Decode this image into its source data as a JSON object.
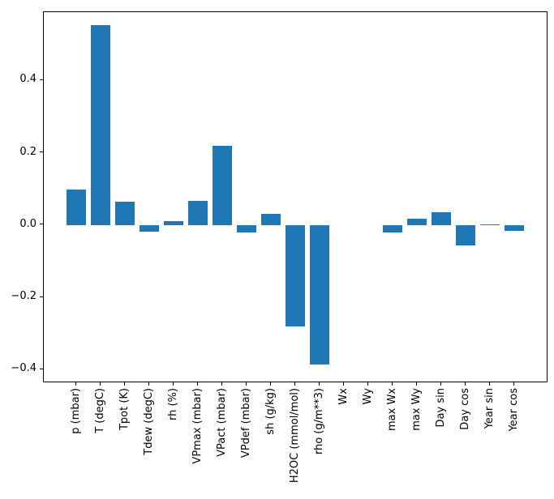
{
  "figure": {
    "background": "#ffffff"
  },
  "chart_data": {
    "type": "bar",
    "title": "",
    "xlabel": "",
    "ylabel": "",
    "categories": [
      "p (mbar)",
      "T (degC)",
      "Tpot (K)",
      "Tdew (degC)",
      "rh (%)",
      "VPmax (mbar)",
      "VPact (mbar)",
      "VPdef (mbar)",
      "sh (g/kg)",
      "H2OC (mmol/mol)",
      "rho (g/m**3)",
      "Wx",
      "Wy",
      "max Wx",
      "max Wy",
      "Day sin",
      "Day cos",
      "Year sin",
      "Year cos"
    ],
    "values": [
      0.099,
      0.553,
      0.064,
      -0.019,
      0.011,
      0.067,
      0.22,
      -0.021,
      0.032,
      -0.281,
      -0.385,
      0.0,
      0.0,
      -0.021,
      0.017,
      0.035,
      -0.056,
      0.002,
      -0.016
    ],
    "yticks": [
      -0.4,
      -0.2,
      0.0,
      0.2,
      0.4
    ],
    "ytick_labels": [
      "−0.4",
      "−0.2",
      "0.0",
      "0.2",
      "0.4"
    ],
    "ylim": [
      -0.437,
      0.589
    ],
    "grid": false,
    "legend_position": "none",
    "bar_color": "#1f77b4",
    "axis_color": "#000000",
    "tick_label_color": "#000000"
  }
}
